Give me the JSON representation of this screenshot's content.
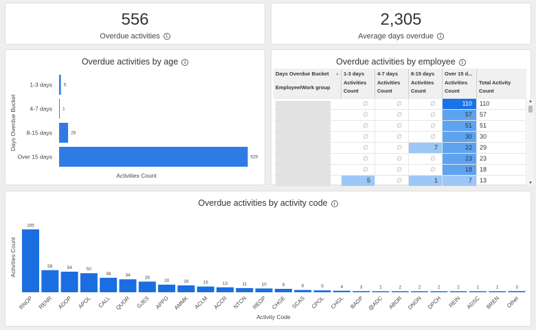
{
  "kpis": [
    {
      "value": "556",
      "label": "Overdue activities"
    },
    {
      "value": "2,305",
      "label": "Average days overdue"
    }
  ],
  "age_chart": {
    "title": "Overdue activities by age",
    "chart_data": {
      "type": "bar",
      "orientation": "horizontal",
      "title": "Overdue activities by age",
      "ylabel": "Days Overdue Bucket",
      "xlabel": "Activities Count",
      "categories": [
        "1-3 days",
        "4-7 days",
        "8-15 days",
        "Over 15 days"
      ],
      "values": [
        5,
        1,
        25,
        525
      ],
      "data_labels": [
        "5",
        "1",
        "25",
        "525"
      ],
      "xlim": [
        0,
        545
      ]
    }
  },
  "employee_table": {
    "title": "Overdue activities by employee",
    "header_row1": [
      "Days Overdue Bucket",
      "1-3 days",
      "4-7 days",
      "8-15 days",
      "Over 15 d...",
      ""
    ],
    "bucket_chevron": "›",
    "header_row2_first": "Employee/Work group",
    "header_row2": [
      "Activities Count",
      "Activities Count",
      "Activities Count",
      "Activities Count",
      "Total Activity Count"
    ],
    "null_symbol": "∅",
    "rows": [
      [
        "∅",
        "∅",
        "∅",
        "110",
        "110"
      ],
      [
        "∅",
        "∅",
        "∅",
        "57",
        "57"
      ],
      [
        "∅",
        "∅",
        "∅",
        "51",
        "51"
      ],
      [
        "∅",
        "∅",
        "∅",
        "30",
        "30"
      ],
      [
        "∅",
        "∅",
        "7",
        "22",
        "29"
      ],
      [
        "∅",
        "∅",
        "∅",
        "23",
        "23"
      ],
      [
        "∅",
        "∅",
        "∅",
        "18",
        "18"
      ],
      [
        "5",
        "∅",
        "1",
        "7",
        "13"
      ]
    ],
    "scroll_up": "▲",
    "scroll_down": "▼"
  },
  "code_chart": {
    "title": "Overdue activities by activity code",
    "chart_data": {
      "type": "bar",
      "title": "Overdue activities by activity code",
      "xlabel": "Activity Code",
      "ylabel": "Activities Count",
      "categories": [
        "RNOP",
        "RENR",
        "ADOP",
        "APOL",
        "CALL",
        "QUOR",
        "GJES",
        "APPO",
        "AMMK",
        "ACLM",
        "ACCR",
        "NTCN",
        "REOP",
        "CHGE",
        "SCAS",
        "CPOL",
        "CHGL",
        "BADP",
        "@ADC",
        "ABOR",
        "DNON",
        "DPCH",
        "REIN",
        "ADSC",
        "BREN",
        "Other"
      ],
      "values": [
        165,
        58,
        54,
        50,
        38,
        34,
        28,
        20,
        18,
        15,
        13,
        11,
        10,
        9,
        6,
        5,
        4,
        3,
        2,
        2,
        2,
        2,
        2,
        1,
        1,
        3
      ],
      "data_labels": [
        "165",
        "58",
        "54",
        "50",
        "38",
        "34",
        "28",
        "20",
        "18",
        "15",
        "13",
        "11",
        "10",
        "9",
        "6",
        "5",
        "4",
        "3",
        "2",
        "2",
        "2",
        "2",
        "2",
        "1",
        "1",
        "3"
      ],
      "ylim": [
        0,
        180
      ]
    }
  },
  "colors": {
    "bar": "#2f7be5",
    "bar_dark": "#1b6ee0",
    "heat_max": "#1a73e8",
    "heat_mid": "#5ea3f0",
    "heat_low": "#9cc7f7",
    "heat_min": "#bcd9fa"
  }
}
